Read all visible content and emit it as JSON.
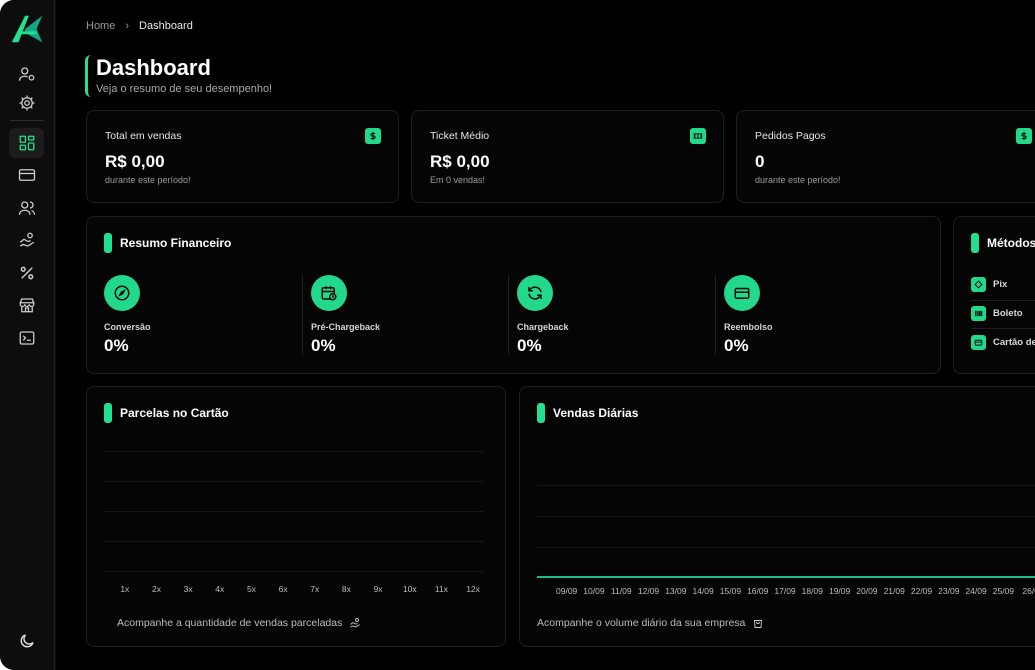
{
  "breadcrumb": {
    "home": "Home",
    "separator": "›",
    "current": "Dashboard"
  },
  "header": {
    "title": "Dashboard",
    "subtitle": "Veja o resumo de seu desempenho!"
  },
  "accent_color": "#22e08f",
  "sidebar": {
    "icons": [
      "user-settings-icon",
      "gear-icon",
      "dashboard-icon",
      "card-icon",
      "users-icon",
      "hand-money-icon",
      "percent-icon",
      "store-icon",
      "terminal-icon"
    ],
    "bottom_icon": "moon-icon"
  },
  "stats": [
    {
      "label": "Total em vendas",
      "value": "R$ 0,00",
      "note": "durante este período!",
      "icon": "dollar-icon"
    },
    {
      "label": "Ticket Médio",
      "value": "R$ 0,00",
      "note": "Em 0 vendas!",
      "icon": "ticket-icon"
    },
    {
      "label": "Pedidos Pagos",
      "value": "0",
      "note": "durante este período!",
      "icon": "dollar-icon"
    }
  ],
  "resumo": {
    "title": "Resumo Financeiro",
    "metrics": [
      {
        "label": "Conversão",
        "value": "0%",
        "icon": "compass-icon"
      },
      {
        "label": "Pré-Chargeback",
        "value": "0%",
        "icon": "calendar-clock-icon"
      },
      {
        "label": "Chargeback",
        "value": "0%",
        "icon": "refresh-icon"
      },
      {
        "label": "Reembolso",
        "value": "0%",
        "icon": "card-icon"
      }
    ]
  },
  "metodos": {
    "title": "Métodos",
    "items": [
      {
        "label": "Pix",
        "icon": "pix-icon"
      },
      {
        "label": "Boleto",
        "icon": "barcode-icon"
      },
      {
        "label": "Cartão de",
        "icon": "card-icon"
      }
    ]
  },
  "parcelas": {
    "title": "Parcelas no Cartão",
    "footer": "Acompanhe a quantidade de vendas parceladas"
  },
  "vendas": {
    "title": "Vendas Diárias",
    "footer": "Acompanhe o volume diário da sua empresa"
  },
  "chart_data": [
    {
      "type": "bar",
      "categories": [
        "1x",
        "2x",
        "3x",
        "4x",
        "5x",
        "6x",
        "7x",
        "8x",
        "9x",
        "10x",
        "11x",
        "12x"
      ],
      "values": [
        0,
        0,
        0,
        0,
        0,
        0,
        0,
        0,
        0,
        0,
        0,
        0
      ],
      "title": "Parcelas no Cartão",
      "grid": true
    },
    {
      "type": "line",
      "x": [
        "09/09",
        "10/09",
        "11/09",
        "12/09",
        "13/09",
        "14/09",
        "15/09",
        "16/09",
        "17/09",
        "18/09",
        "19/09",
        "20/09",
        "21/09",
        "22/09",
        "23/09",
        "24/09",
        "25/09",
        "26/0"
      ],
      "y": [
        0,
        0,
        0,
        0,
        0,
        0,
        0,
        0,
        0,
        0,
        0,
        0,
        0,
        0,
        0,
        0,
        0,
        0
      ],
      "title": "Vendas Diárias",
      "color": "#1fb98a",
      "grid": true
    }
  ]
}
